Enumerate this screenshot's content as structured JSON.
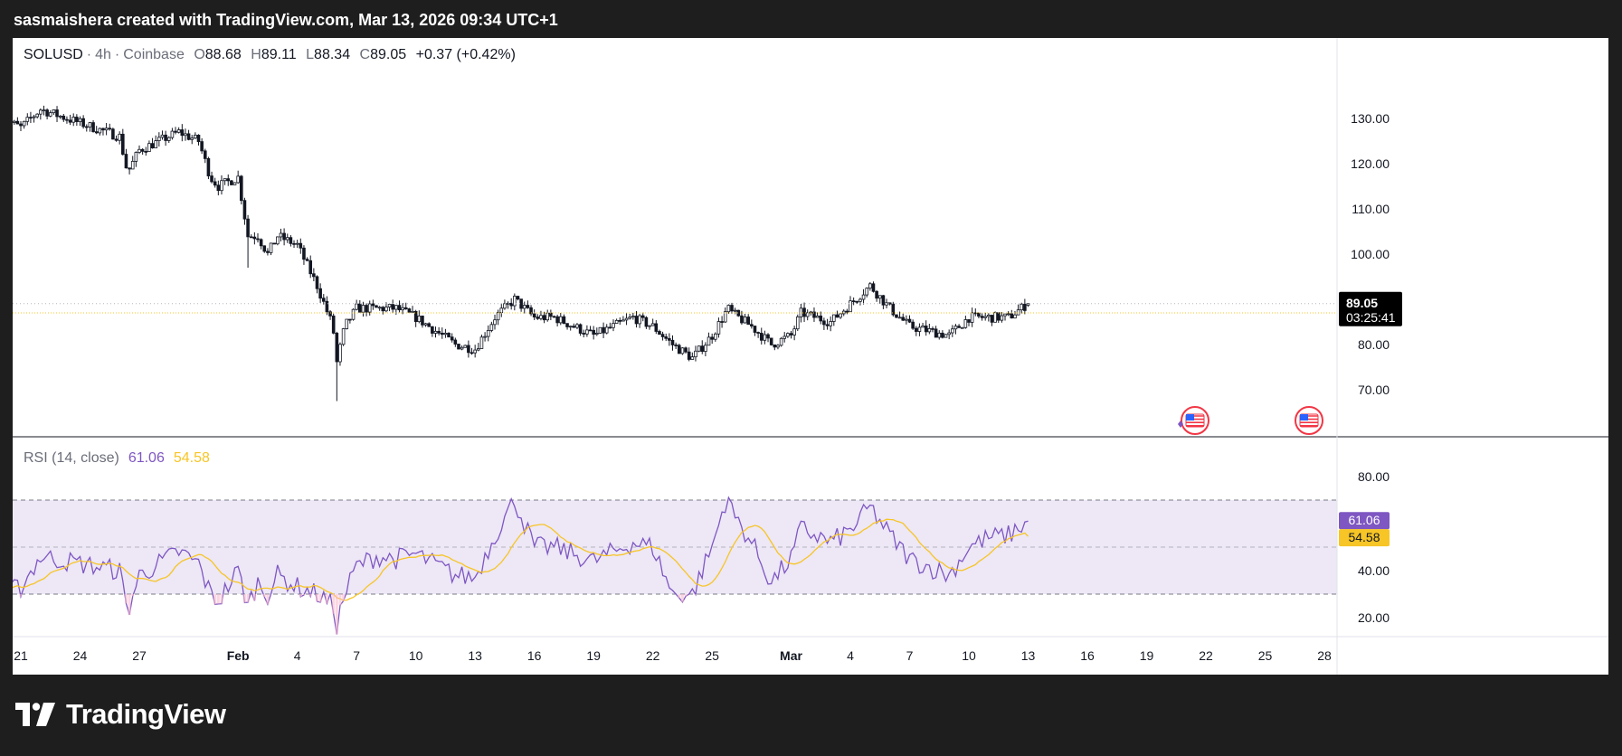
{
  "header": {
    "attribution": "sasmaishera created with TradingView.com, Mar 13, 2026 09:34 UTC+1"
  },
  "legend": {
    "symbol": "SOLUSD",
    "interval": "4h",
    "exchange": "Coinbase",
    "open_label": "O",
    "open": "88.68",
    "high_label": "H",
    "high": "89.11",
    "low_label": "L",
    "low": "88.34",
    "close_label": "C",
    "close": "89.05",
    "change": "+0.37 (+0.42%)"
  },
  "rsi_legend": {
    "name": "RSI (14, close)",
    "rsi_value": "61.06",
    "ma_value": "54.58"
  },
  "price_tag": {
    "price": "89.05",
    "countdown": "03:25:41"
  },
  "rsi_tags": {
    "rsi": "61.06",
    "ma": "54.58"
  },
  "brand": {
    "name": "TradingView"
  },
  "colors": {
    "candle": "#131722",
    "rsi_line": "#7e57c2",
    "rsi_ma": "#f7c525",
    "rsi_band": "#ede7f6",
    "last_price_line": "#f7c525",
    "price_tag_bg": "#000000",
    "rsi_tag_bg": "#7e57c2",
    "ma_tag_bg": "#f7c525"
  },
  "chart_data": [
    {
      "type": "candlestick",
      "series": [
        {
          "name": "SOLUSD",
          "values_note": ""
        }
      ],
      "x": {
        "start": "Jan 20",
        "end": "Mar 13",
        "bar_interval_hours": 4
      },
      "ylim": [
        62,
        140
      ],
      "y_ticks": [
        "130.00",
        "120.00",
        "110.00",
        "100.00",
        "80.00",
        "70.00"
      ],
      "x_ticks": [
        "21",
        "24",
        "27",
        "Feb",
        "4",
        "7",
        "10",
        "13",
        "16",
        "19",
        "22",
        "25",
        "Mar",
        "4",
        "7",
        "10",
        "13",
        "16",
        "19",
        "22",
        "25",
        "28"
      ],
      "anchors": [
        [
          "Jan 20",
          130
        ],
        [
          "Jan 21",
          128
        ],
        [
          "Jan 22",
          132
        ],
        [
          "Jan 24",
          129
        ],
        [
          "Jan 26",
          126
        ],
        [
          "Jan 26.4",
          118
        ],
        [
          "Jan 27",
          123
        ],
        [
          "Jan 29",
          127
        ],
        [
          "Jan 30",
          125
        ],
        [
          "Jan 30.6",
          117
        ],
        [
          "Jan 31",
          115
        ],
        [
          "Feb 1",
          117
        ],
        [
          "Feb 1.5",
          104
        ],
        [
          "Feb 2",
          104
        ],
        [
          "Feb 2.5",
          100
        ],
        [
          "Feb 3",
          104
        ],
        [
          "Feb 4",
          102
        ],
        [
          "Feb 5",
          93
        ],
        [
          "Feb 5.8",
          84
        ],
        [
          "Feb 6",
          76
        ],
        [
          "Feb 6.4",
          84
        ],
        [
          "Feb 7",
          88
        ],
        [
          "Feb 8",
          88
        ],
        [
          "Feb 9",
          88
        ],
        [
          "Feb 10",
          86
        ],
        [
          "Feb 12",
          80
        ],
        [
          "Feb 13",
          79
        ],
        [
          "Feb 14",
          86
        ],
        [
          "Feb 15",
          90
        ],
        [
          "Feb 16",
          86
        ],
        [
          "Feb 17",
          86
        ],
        [
          "Feb 19",
          82
        ],
        [
          "Feb 21",
          86
        ],
        [
          "Feb 22",
          84
        ],
        [
          "Feb 23",
          80
        ],
        [
          "Feb 24",
          77
        ],
        [
          "Feb 25",
          82
        ],
        [
          "Feb 25.8",
          88
        ],
        [
          "Feb 26",
          87
        ],
        [
          "Feb 27",
          84
        ],
        [
          "Feb 28",
          80
        ],
        [
          "Mar 1",
          82
        ],
        [
          "Mar 1.5",
          87
        ],
        [
          "Mar 3",
          85
        ],
        [
          "Mar 4",
          89
        ],
        [
          "Mar 5",
          93
        ],
        [
          "Mar 6",
          88
        ],
        [
          "Mar 7",
          84
        ],
        [
          "Mar 9",
          82
        ],
        [
          "Mar 10",
          86
        ],
        [
          "Mar 11",
          86
        ],
        [
          "Mar 12",
          86
        ],
        [
          "Mar 13",
          89.05
        ]
      ],
      "last": {
        "open": 88.68,
        "high": 89.11,
        "low": 88.34,
        "close": 89.05
      }
    },
    {
      "type": "line",
      "title": "RSI (14, close)",
      "ylim": [
        10,
        80
      ],
      "y_ticks": [
        "80.00",
        "40.00",
        "20.00"
      ],
      "bands": [
        30,
        50,
        70
      ],
      "series": [
        {
          "name": "RSI",
          "last": 61.06
        },
        {
          "name": "MA",
          "last": 54.58
        }
      ],
      "anchors": [
        [
          "Jan 20",
          30
        ],
        [
          "Jan 21",
          33
        ],
        [
          "Jan 22",
          46
        ],
        [
          "Jan 24",
          43
        ],
        [
          "Jan 26",
          40
        ],
        [
          "Jan 26.4",
          22
        ],
        [
          "Jan 27",
          38
        ],
        [
          "Jan 29",
          48
        ],
        [
          "Jan 30",
          43
        ],
        [
          "Jan 30.6",
          30
        ],
        [
          "Jan 31",
          27
        ],
        [
          "Feb 1",
          40
        ],
        [
          "Feb 1.5",
          25
        ],
        [
          "Feb 2",
          35
        ],
        [
          "Feb 2.5",
          30
        ],
        [
          "Feb 3",
          38
        ],
        [
          "Feb 4",
          33
        ],
        [
          "Feb 5",
          30
        ],
        [
          "Feb 5.8",
          25
        ],
        [
          "Feb 6",
          17
        ],
        [
          "Feb 6.4",
          30
        ],
        [
          "Feb 7",
          42
        ],
        [
          "Feb 8",
          46
        ],
        [
          "Feb 9",
          45
        ],
        [
          "Feb 10",
          47
        ],
        [
          "Feb 12",
          38
        ],
        [
          "Feb 13",
          37
        ],
        [
          "Feb 14",
          55
        ],
        [
          "Feb 15",
          70
        ],
        [
          "Feb 16",
          50
        ],
        [
          "Feb 17",
          50
        ],
        [
          "Feb 19",
          44
        ],
        [
          "Feb 21",
          52
        ],
        [
          "Feb 22",
          50
        ],
        [
          "Feb 23",
          30
        ],
        [
          "Feb 24",
          30
        ],
        [
          "Feb 25",
          50
        ],
        [
          "Feb 25.8",
          73
        ],
        [
          "Feb 26",
          65
        ],
        [
          "Feb 27",
          52
        ],
        [
          "Feb 28",
          35
        ],
        [
          "Mar 1",
          45
        ],
        [
          "Mar 1.5",
          58
        ],
        [
          "Mar 3",
          52
        ],
        [
          "Mar 4",
          57
        ],
        [
          "Mar 5",
          67
        ],
        [
          "Mar 6",
          55
        ],
        [
          "Mar 7",
          45
        ],
        [
          "Mar 9",
          38
        ],
        [
          "Mar 10",
          50
        ],
        [
          "Mar 11",
          54
        ],
        [
          "Mar 12",
          55
        ],
        [
          "Mar 13",
          61.06
        ]
      ]
    }
  ]
}
